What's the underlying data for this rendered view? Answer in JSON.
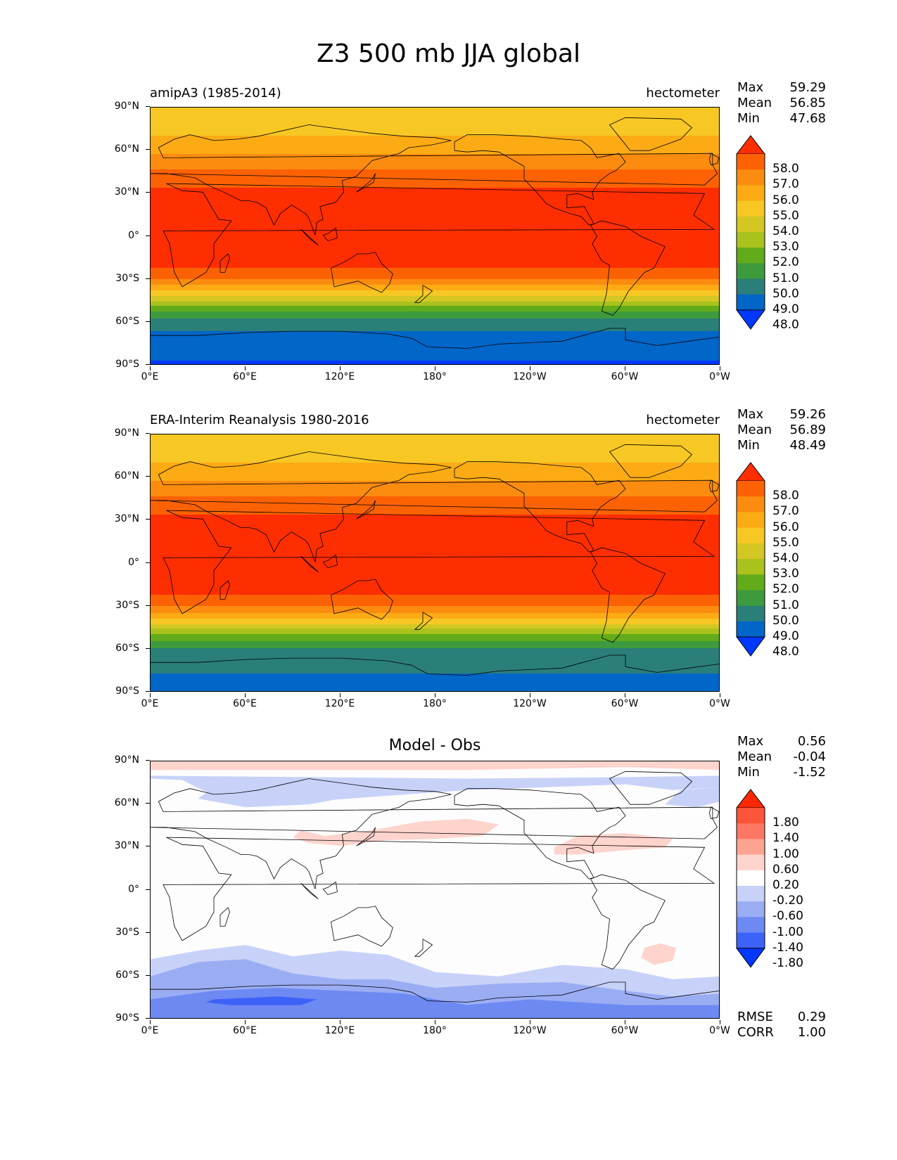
{
  "figure_title": "Z3 500 mb JJA global",
  "panels": [
    {
      "left_title": "amipA3 (1985-2014)",
      "right_title": "hectometer",
      "center_title": "",
      "stats": [
        [
          "Max",
          "59.29"
        ],
        [
          "Mean",
          "56.85"
        ],
        [
          "Min",
          "47.68"
        ]
      ],
      "colorbar_labels": [
        "58.0",
        "57.0",
        "56.0",
        "55.0",
        "54.0",
        "53.0",
        "52.0",
        "51.0",
        "50.0",
        "49.0",
        "48.0"
      ]
    },
    {
      "left_title": "ERA-Interim Reanalysis 1980-2016",
      "right_title": "hectometer",
      "center_title": "",
      "stats": [
        [
          "Max",
          "59.26"
        ],
        [
          "Mean",
          "56.89"
        ],
        [
          "Min",
          "48.49"
        ]
      ],
      "colorbar_labels": [
        "58.0",
        "57.0",
        "56.0",
        "55.0",
        "54.0",
        "53.0",
        "52.0",
        "51.0",
        "50.0",
        "49.0",
        "48.0"
      ]
    },
    {
      "left_title": "",
      "right_title": "",
      "center_title": "Model - Obs",
      "stats": [
        [
          "Max",
          "0.56"
        ],
        [
          "Mean",
          "-0.04"
        ],
        [
          "Min",
          "-1.52"
        ]
      ],
      "colorbar_labels": [
        "1.80",
        "1.40",
        "1.00",
        "0.60",
        "0.20",
        "-0.20",
        "-0.60",
        "-1.00",
        "-1.40",
        "-1.80"
      ],
      "footer_stats": [
        [
          "RMSE",
          "0.29"
        ],
        [
          "CORR",
          "1.00"
        ]
      ]
    }
  ],
  "y_tick_labels": [
    "90°N",
    "60°N",
    "30°N",
    "0°",
    "30°S",
    "60°S",
    "90°S"
  ],
  "x_tick_labels": [
    "0°E",
    "60°E",
    "120°E",
    "180°",
    "120°W",
    "60°W",
    "0°W"
  ],
  "colors": {
    "abs_scale": [
      "#0038ff",
      "#0066c8",
      "#2a7f79",
      "#3d9a3d",
      "#62ab1a",
      "#a9c21c",
      "#d4c723",
      "#f7c724",
      "#fcab14",
      "#fb8c10",
      "#fc6204",
      "#ff2e00"
    ],
    "diff_scale": [
      "#0038ff",
      "#3c62f7",
      "#6d89f2",
      "#9aadf3",
      "#c8d2f8",
      "#ffffff",
      "#fed4cd",
      "#fea392",
      "#fd7762",
      "#fc5438",
      "#ff2800"
    ]
  },
  "chart_data": [
    {
      "type": "heatmap",
      "title": "amipA3 (1985-2014)",
      "units": "hectometer",
      "xlabel": "",
      "ylabel": "",
      "x_range": [
        0,
        360
      ],
      "y_range": [
        -90,
        90
      ],
      "levels": [
        48,
        49,
        50,
        51,
        52,
        53,
        54,
        55,
        56,
        57,
        58
      ],
      "zonal_profile": {
        "lat": [
          -90,
          -80,
          -70,
          -60,
          -50,
          -40,
          -30,
          -20,
          0,
          20,
          30,
          40,
          50,
          60,
          70,
          80,
          90
        ],
        "value": [
          47.8,
          48.4,
          48.6,
          49.5,
          51.5,
          54.5,
          57.0,
          58.2,
          58.6,
          58.5,
          58.3,
          57.6,
          56.7,
          55.8,
          55.0,
          54.6,
          54.5
        ]
      },
      "stats": {
        "max": 59.29,
        "mean": 56.85,
        "min": 47.68
      }
    },
    {
      "type": "heatmap",
      "title": "ERA-Interim Reanalysis 1980-2016",
      "units": "hectometer",
      "xlabel": "",
      "ylabel": "",
      "x_range": [
        0,
        360
      ],
      "y_range": [
        -90,
        90
      ],
      "levels": [
        48,
        49,
        50,
        51,
        52,
        53,
        54,
        55,
        56,
        57,
        58
      ],
      "zonal_profile": {
        "lat": [
          -90,
          -80,
          -70,
          -60,
          -50,
          -40,
          -30,
          -20,
          0,
          20,
          30,
          40,
          50,
          60,
          70,
          80,
          90
        ],
        "value": [
          48.8,
          48.9,
          49.2,
          49.9,
          51.8,
          54.6,
          57.0,
          58.2,
          58.6,
          58.5,
          58.3,
          57.6,
          56.7,
          55.8,
          55.0,
          54.5,
          54.3
        ]
      },
      "stats": {
        "max": 59.26,
        "mean": 56.89,
        "min": 48.49
      }
    },
    {
      "type": "heatmap",
      "title": "Model - Obs",
      "units": "hectometer",
      "xlabel": "",
      "ylabel": "",
      "x_range": [
        0,
        360
      ],
      "y_range": [
        -90,
        90
      ],
      "levels": [
        -1.8,
        -1.4,
        -1.0,
        -0.6,
        -0.2,
        0.2,
        0.6,
        1.0,
        1.4,
        1.8
      ],
      "stats": {
        "max": 0.56,
        "mean": -0.04,
        "min": -1.52,
        "rmse": 0.29,
        "corr": 1.0
      }
    }
  ]
}
